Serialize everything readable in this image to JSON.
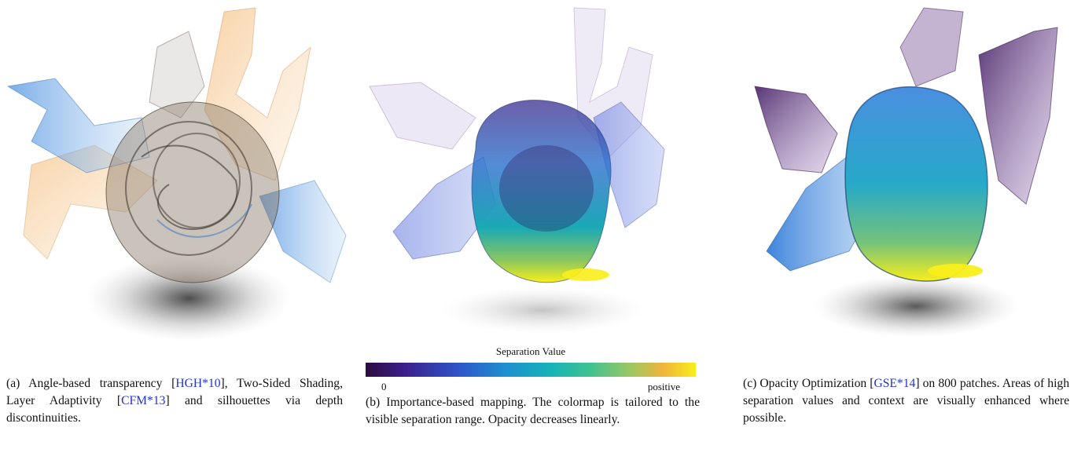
{
  "panels": [
    {
      "id": "a",
      "caption": {
        "pre": "(a) Angle-based transparency [",
        "ref1": "HGH*10",
        "mid": "], Two-Sided Shading, Layer Adaptivity [",
        "ref2": "CFM*13",
        "post": "] and silhouettes via depth discontinuities."
      }
    },
    {
      "id": "b",
      "caption": {
        "text": "(b) Importance-based mapping. The colormap is tailored to the visible separation range. Opacity decreases linearly."
      },
      "colorbar": {
        "title": "Separation Value",
        "min_label": "0",
        "max_label": "positive"
      }
    },
    {
      "id": "c",
      "caption": {
        "pre": "(c) Opacity Optimization [",
        "ref1": "GSE*14",
        "post": "] on 800 patches. Areas of high separation values and context are visually enhanced where possible."
      }
    }
  ],
  "colors": {
    "link": "#2233cc",
    "surface_a_blue": "#5a9be0",
    "surface_a_orange": "#f0a860",
    "highlight": "#f9ee1b"
  }
}
